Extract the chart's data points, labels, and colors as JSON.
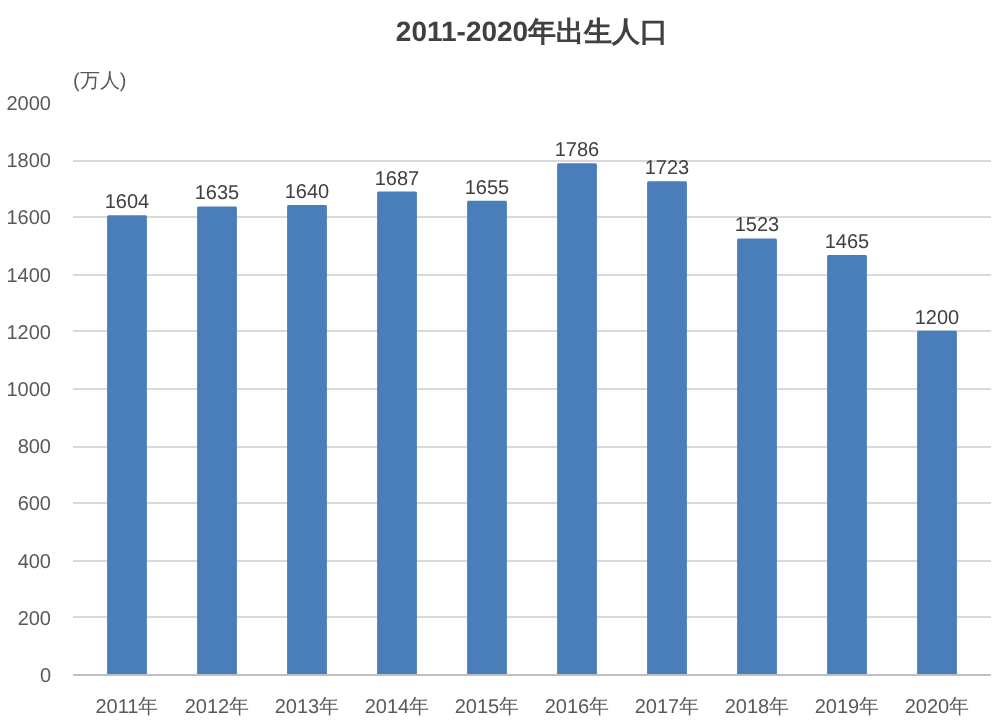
{
  "chart_data": {
    "type": "bar",
    "title": "2011-2020年出生人口",
    "ylabel": "(万人)",
    "categories": [
      "2011年",
      "2012年",
      "2013年",
      "2014年",
      "2015年",
      "2016年",
      "2017年",
      "2018年",
      "2019年",
      "2020年"
    ],
    "values": [
      1604,
      1635,
      1640,
      1687,
      1655,
      1786,
      1723,
      1523,
      1465,
      1200
    ],
    "color": "#4a7ebb",
    "ylim": [
      0,
      2000
    ],
    "yticks": [
      0,
      200,
      400,
      600,
      800,
      1000,
      1200,
      1400,
      1600,
      1800,
      2000
    ],
    "grid": "y",
    "data_labels": true
  }
}
